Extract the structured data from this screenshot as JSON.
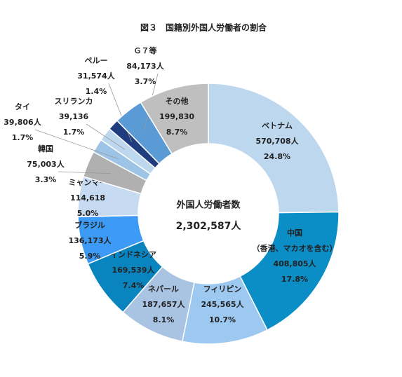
{
  "chart_data": {
    "type": "donut",
    "title": "図３　国籍別外国人労働者の割合",
    "center_title": "外国人労働者数",
    "center_total": "2,302,587人",
    "categories": [
      "ベトナム",
      "中国\n（香港、マカオを含む）",
      "フィリピン",
      "ネパール",
      "インドネシア",
      "ブラジル",
      "ミャンマー",
      "韓国",
      "タイ",
      "スリランカ",
      "ペルー",
      "Ｇ７等",
      "その他"
    ],
    "values": [
      570708,
      408805,
      245565,
      187657,
      169539,
      136173,
      114618,
      75003,
      39806,
      39136,
      31574,
      84173,
      199830
    ],
    "value_labels": [
      "570,708人",
      "408,805人",
      "245,565人",
      "187,657人",
      "169,539人",
      "136,173人",
      "114,618",
      "75,003人",
      "39,806人",
      "39,136",
      "31,574人",
      "84,173人",
      "199,830"
    ],
    "shares": [
      "24.8%",
      "17.8%",
      "10.7%",
      "8.1%",
      "7.4%",
      "5.9%",
      "5.0%",
      "3.3%",
      "1.7%",
      "1.7%",
      "1.4%",
      "3.7%",
      "8.7%"
    ],
    "colors": [
      "#bdd7ee",
      "#0b8dc5",
      "#9dc8f0",
      "#a9c3e2",
      "#0a84bf",
      "#3d9bf5",
      "#c6daf1",
      "#b0b0b0",
      "#9dc3e6",
      "#bdd7ee",
      "#1f3c7e",
      "#5b9bd5",
      "#bfbfbf"
    ]
  }
}
